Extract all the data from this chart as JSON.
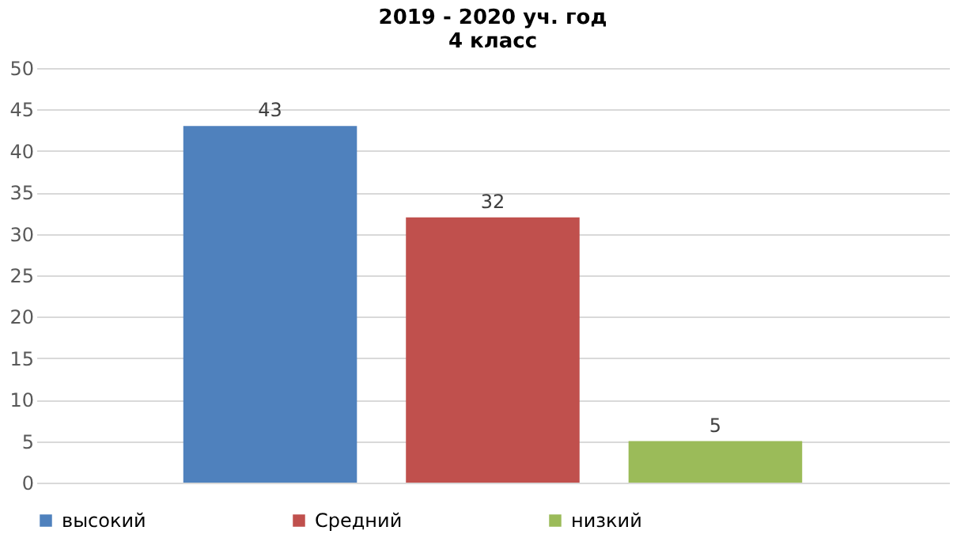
{
  "chart_data": {
    "type": "bar",
    "title": "2019 - 2020 уч. год\n4  класс",
    "categories": [
      null
    ],
    "series": [
      {
        "name": "высокий",
        "color": "#4f81bd",
        "values": [
          43
        ]
      },
      {
        "name": "Средний",
        "color": "#c0504d",
        "values": [
          32
        ]
      },
      {
        "name": "низкий",
        "color": "#9bbb59",
        "values": [
          5
        ]
      }
    ],
    "ylim": [
      0,
      50
    ],
    "yticks": [
      0,
      5,
      10,
      15,
      20,
      25,
      30,
      35,
      40,
      45,
      50
    ],
    "grid": "y",
    "legend": "bottom",
    "data_labels": true
  }
}
